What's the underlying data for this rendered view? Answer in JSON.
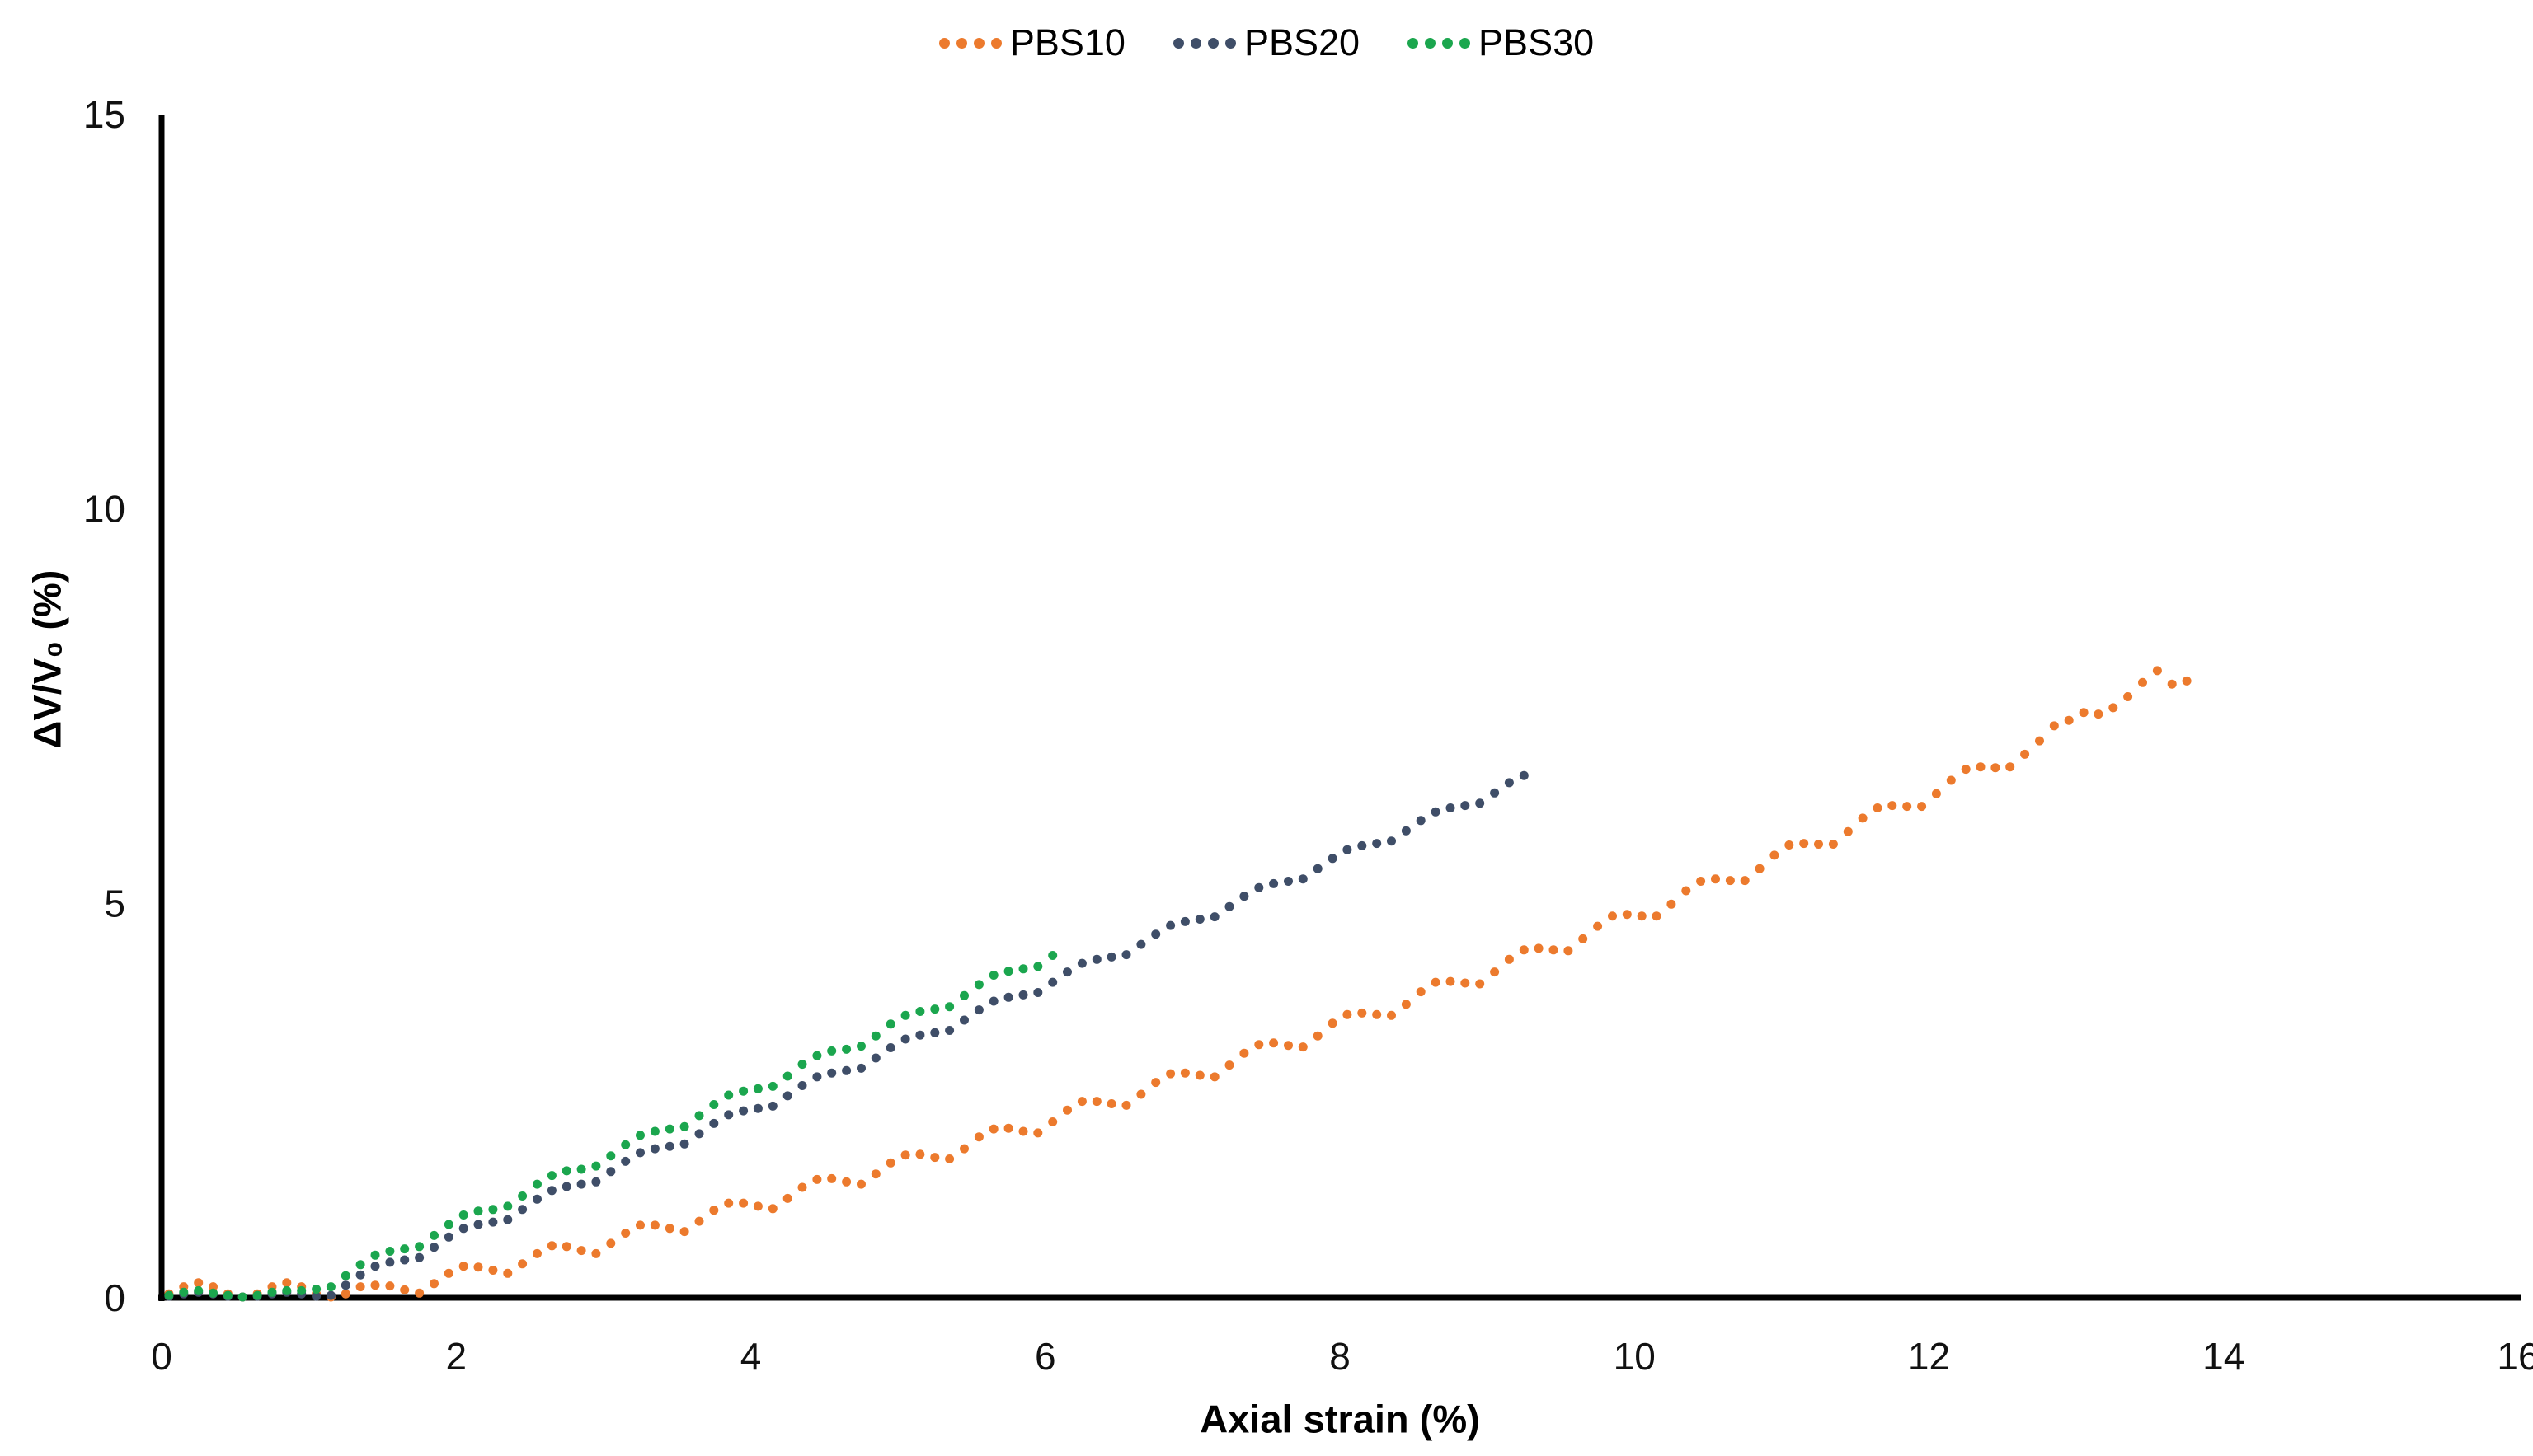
{
  "chart_data": {
    "type": "scatter",
    "title": "",
    "xlabel": "Axial strain (%)",
    "ylabel": "ΔV/V₀ (%)",
    "xlim": [
      0,
      16
    ],
    "ylim": [
      0,
      15
    ],
    "x_ticks": [
      0,
      2,
      4,
      6,
      8,
      10,
      12,
      14,
      16
    ],
    "y_ticks": [
      0,
      5,
      10,
      15
    ],
    "grid": false,
    "legend_position": "top-center",
    "axis_color": "#000000",
    "text_color": "#000000",
    "marker_style": "dotted-round",
    "series": [
      {
        "name": "PBS10",
        "color": "#EC7A2D",
        "points": [
          [
            0.05,
            0.05
          ],
          [
            0.15,
            0.14
          ],
          [
            0.25,
            0.19
          ],
          [
            0.35,
            0.14
          ],
          [
            0.45,
            0.05
          ],
          [
            0.55,
            0.01
          ],
          [
            0.65,
            0.05
          ],
          [
            0.75,
            0.14
          ],
          [
            0.85,
            0.19
          ],
          [
            0.95,
            0.14
          ],
          [
            1.05,
            0.05
          ],
          [
            1.15,
            0.01
          ],
          [
            1.25,
            0.05
          ],
          [
            1.35,
            0.14
          ],
          [
            1.45,
            0.16
          ],
          [
            1.55,
            0.15
          ],
          [
            1.65,
            0.1
          ],
          [
            1.75,
            0.06
          ],
          [
            1.85,
            0.18
          ],
          [
            1.95,
            0.31
          ],
          [
            2.05,
            0.4
          ],
          [
            2.15,
            0.39
          ],
          [
            2.25,
            0.35
          ],
          [
            2.35,
            0.31
          ],
          [
            2.45,
            0.43
          ],
          [
            2.55,
            0.56
          ],
          [
            2.65,
            0.66
          ],
          [
            2.75,
            0.65
          ],
          [
            2.85,
            0.6
          ],
          [
            2.95,
            0.56
          ],
          [
            3.05,
            0.69
          ],
          [
            3.15,
            0.82
          ],
          [
            3.25,
            0.92
          ],
          [
            3.35,
            0.92
          ],
          [
            3.45,
            0.88
          ],
          [
            3.55,
            0.84
          ],
          [
            3.65,
            0.97
          ],
          [
            3.75,
            1.11
          ],
          [
            3.85,
            1.2
          ],
          [
            3.95,
            1.2
          ],
          [
            4.05,
            1.16
          ],
          [
            4.15,
            1.13
          ],
          [
            4.25,
            1.26
          ],
          [
            4.35,
            1.4
          ],
          [
            4.45,
            1.5
          ],
          [
            4.55,
            1.51
          ],
          [
            4.65,
            1.47
          ],
          [
            4.75,
            1.44
          ],
          [
            4.85,
            1.57
          ],
          [
            4.95,
            1.71
          ],
          [
            5.05,
            1.81
          ],
          [
            5.15,
            1.82
          ],
          [
            5.25,
            1.78
          ],
          [
            5.35,
            1.76
          ],
          [
            5.45,
            1.89
          ],
          [
            5.55,
            2.04
          ],
          [
            5.65,
            2.14
          ],
          [
            5.75,
            2.15
          ],
          [
            5.85,
            2.11
          ],
          [
            5.95,
            2.09
          ],
          [
            6.05,
            2.23
          ],
          [
            6.15,
            2.38
          ],
          [
            6.25,
            2.49
          ],
          [
            6.35,
            2.49
          ],
          [
            6.45,
            2.46
          ],
          [
            6.55,
            2.44
          ],
          [
            6.65,
            2.58
          ],
          [
            6.75,
            2.73
          ],
          [
            6.85,
            2.84
          ],
          [
            6.95,
            2.85
          ],
          [
            7.05,
            2.82
          ],
          [
            7.15,
            2.8
          ],
          [
            7.25,
            2.95
          ],
          [
            7.35,
            3.1
          ],
          [
            7.45,
            3.21
          ],
          [
            7.55,
            3.23
          ],
          [
            7.65,
            3.2
          ],
          [
            7.75,
            3.18
          ],
          [
            7.85,
            3.32
          ],
          [
            7.95,
            3.48
          ],
          [
            8.05,
            3.59
          ],
          [
            8.15,
            3.61
          ],
          [
            8.25,
            3.59
          ],
          [
            8.35,
            3.58
          ],
          [
            8.45,
            3.72
          ],
          [
            8.55,
            3.88
          ],
          [
            8.65,
            4.0
          ],
          [
            8.75,
            4.01
          ],
          [
            8.85,
            3.99
          ],
          [
            8.95,
            3.98
          ],
          [
            9.05,
            4.13
          ],
          [
            9.15,
            4.29
          ],
          [
            9.25,
            4.41
          ],
          [
            9.35,
            4.43
          ],
          [
            9.45,
            4.41
          ],
          [
            9.55,
            4.4
          ],
          [
            9.65,
            4.55
          ],
          [
            9.75,
            4.71
          ],
          [
            9.85,
            4.84
          ],
          [
            9.95,
            4.86
          ],
          [
            10.05,
            4.84
          ],
          [
            10.15,
            4.84
          ],
          [
            10.25,
            4.99
          ],
          [
            10.35,
            5.16
          ],
          [
            10.45,
            5.28
          ],
          [
            10.55,
            5.31
          ],
          [
            10.65,
            5.29
          ],
          [
            10.75,
            5.29
          ],
          [
            10.85,
            5.44
          ],
          [
            10.95,
            5.61
          ],
          [
            11.05,
            5.74
          ],
          [
            11.15,
            5.76
          ],
          [
            11.25,
            5.75
          ],
          [
            11.35,
            5.75
          ],
          [
            11.45,
            5.91
          ],
          [
            11.55,
            6.08
          ],
          [
            11.65,
            6.21
          ],
          [
            11.75,
            6.24
          ],
          [
            11.85,
            6.23
          ],
          [
            11.95,
            6.23
          ],
          [
            12.05,
            6.39
          ],
          [
            12.15,
            6.56
          ],
          [
            12.25,
            6.7
          ],
          [
            12.35,
            6.73
          ],
          [
            12.45,
            6.72
          ],
          [
            12.55,
            6.73
          ],
          [
            12.65,
            6.89
          ],
          [
            12.75,
            7.06
          ],
          [
            12.85,
            7.25
          ],
          [
            12.95,
            7.32
          ],
          [
            13.05,
            7.42
          ],
          [
            13.15,
            7.4
          ],
          [
            13.25,
            7.48
          ],
          [
            13.35,
            7.62
          ],
          [
            13.45,
            7.8
          ],
          [
            13.55,
            7.95
          ],
          [
            13.65,
            7.78
          ],
          [
            13.75,
            7.82
          ]
        ]
      },
      {
        "name": "PBS20",
        "color": "#3F4E68",
        "points": [
          [
            0.05,
            0.02
          ],
          [
            0.15,
            0.05
          ],
          [
            0.25,
            0.07
          ],
          [
            0.35,
            0.05
          ],
          [
            0.45,
            0.02
          ],
          [
            0.55,
            0.01
          ],
          [
            0.65,
            0.02
          ],
          [
            0.75,
            0.05
          ],
          [
            0.85,
            0.07
          ],
          [
            0.95,
            0.05
          ],
          [
            1.05,
            0.02
          ],
          [
            1.15,
            0.03
          ],
          [
            1.25,
            0.16
          ],
          [
            1.35,
            0.29
          ],
          [
            1.45,
            0.4
          ],
          [
            1.55,
            0.45
          ],
          [
            1.65,
            0.48
          ],
          [
            1.75,
            0.51
          ],
          [
            1.85,
            0.64
          ],
          [
            1.95,
            0.77
          ],
          [
            2.05,
            0.88
          ],
          [
            2.15,
            0.93
          ],
          [
            2.25,
            0.96
          ],
          [
            2.35,
            0.99
          ],
          [
            2.45,
            1.12
          ],
          [
            2.55,
            1.25
          ],
          [
            2.65,
            1.36
          ],
          [
            2.75,
            1.41
          ],
          [
            2.85,
            1.44
          ],
          [
            2.95,
            1.47
          ],
          [
            3.05,
            1.6
          ],
          [
            3.15,
            1.73
          ],
          [
            3.25,
            1.84
          ],
          [
            3.35,
            1.89
          ],
          [
            3.45,
            1.92
          ],
          [
            3.55,
            1.95
          ],
          [
            3.65,
            2.08
          ],
          [
            3.75,
            2.21
          ],
          [
            3.85,
            2.32
          ],
          [
            3.95,
            2.37
          ],
          [
            4.05,
            2.4
          ],
          [
            4.15,
            2.43
          ],
          [
            4.25,
            2.56
          ],
          [
            4.35,
            2.69
          ],
          [
            4.45,
            2.8
          ],
          [
            4.55,
            2.85
          ],
          [
            4.65,
            2.88
          ],
          [
            4.75,
            2.91
          ],
          [
            4.85,
            3.04
          ],
          [
            4.95,
            3.17
          ],
          [
            5.05,
            3.28
          ],
          [
            5.15,
            3.33
          ],
          [
            5.25,
            3.36
          ],
          [
            5.35,
            3.39
          ],
          [
            5.45,
            3.52
          ],
          [
            5.55,
            3.65
          ],
          [
            5.65,
            3.76
          ],
          [
            5.75,
            3.81
          ],
          [
            5.85,
            3.84
          ],
          [
            5.95,
            3.87
          ],
          [
            6.05,
            4.0
          ],
          [
            6.15,
            4.13
          ],
          [
            6.25,
            4.24
          ],
          [
            6.35,
            4.29
          ],
          [
            6.45,
            4.32
          ],
          [
            6.55,
            4.35
          ],
          [
            6.65,
            4.48
          ],
          [
            6.75,
            4.61
          ],
          [
            6.85,
            4.72
          ],
          [
            6.95,
            4.77
          ],
          [
            7.05,
            4.8
          ],
          [
            7.15,
            4.83
          ],
          [
            7.25,
            4.96
          ],
          [
            7.35,
            5.09
          ],
          [
            7.45,
            5.2
          ],
          [
            7.55,
            5.25
          ],
          [
            7.65,
            5.28
          ],
          [
            7.75,
            5.31
          ],
          [
            7.85,
            5.44
          ],
          [
            7.95,
            5.57
          ],
          [
            8.05,
            5.68
          ],
          [
            8.15,
            5.73
          ],
          [
            8.25,
            5.76
          ],
          [
            8.35,
            5.79
          ],
          [
            8.45,
            5.92
          ],
          [
            8.55,
            6.05
          ],
          [
            8.65,
            6.16
          ],
          [
            8.75,
            6.21
          ],
          [
            8.85,
            6.24
          ],
          [
            8.95,
            6.27
          ],
          [
            9.05,
            6.4
          ],
          [
            9.15,
            6.53
          ],
          [
            9.25,
            6.62
          ]
        ]
      },
      {
        "name": "PBS30",
        "color": "#1BA64E",
        "points": [
          [
            0.05,
            0.03
          ],
          [
            0.15,
            0.07
          ],
          [
            0.25,
            0.09
          ],
          [
            0.35,
            0.06
          ],
          [
            0.45,
            0.03
          ],
          [
            0.55,
            0.01
          ],
          [
            0.65,
            0.03
          ],
          [
            0.75,
            0.07
          ],
          [
            0.85,
            0.09
          ],
          [
            0.95,
            0.09
          ],
          [
            1.05,
            0.11
          ],
          [
            1.15,
            0.14
          ],
          [
            1.25,
            0.28
          ],
          [
            1.35,
            0.42
          ],
          [
            1.45,
            0.54
          ],
          [
            1.55,
            0.59
          ],
          [
            1.65,
            0.62
          ],
          [
            1.75,
            0.65
          ],
          [
            1.85,
            0.79
          ],
          [
            1.95,
            0.93
          ],
          [
            2.05,
            1.05
          ],
          [
            2.15,
            1.1
          ],
          [
            2.25,
            1.12
          ],
          [
            2.35,
            1.16
          ],
          [
            2.45,
            1.29
          ],
          [
            2.55,
            1.44
          ],
          [
            2.65,
            1.55
          ],
          [
            2.75,
            1.61
          ],
          [
            2.85,
            1.63
          ],
          [
            2.95,
            1.67
          ],
          [
            3.05,
            1.8
          ],
          [
            3.15,
            1.94
          ],
          [
            3.25,
            2.06
          ],
          [
            3.35,
            2.11
          ],
          [
            3.45,
            2.14
          ],
          [
            3.55,
            2.17
          ],
          [
            3.65,
            2.31
          ],
          [
            3.75,
            2.45
          ],
          [
            3.85,
            2.57
          ],
          [
            3.95,
            2.62
          ],
          [
            4.05,
            2.65
          ],
          [
            4.15,
            2.68
          ],
          [
            4.25,
            2.81
          ],
          [
            4.35,
            2.96
          ],
          [
            4.45,
            3.07
          ],
          [
            4.55,
            3.13
          ],
          [
            4.65,
            3.15
          ],
          [
            4.75,
            3.19
          ],
          [
            4.85,
            3.32
          ],
          [
            4.95,
            3.47
          ],
          [
            5.05,
            3.58
          ],
          [
            5.15,
            3.63
          ],
          [
            5.25,
            3.66
          ],
          [
            5.35,
            3.69
          ],
          [
            5.45,
            3.83
          ],
          [
            5.55,
            3.97
          ],
          [
            5.65,
            4.09
          ],
          [
            5.75,
            4.14
          ],
          [
            5.85,
            4.17
          ],
          [
            5.95,
            4.2
          ],
          [
            6.05,
            4.34
          ]
        ]
      }
    ]
  }
}
